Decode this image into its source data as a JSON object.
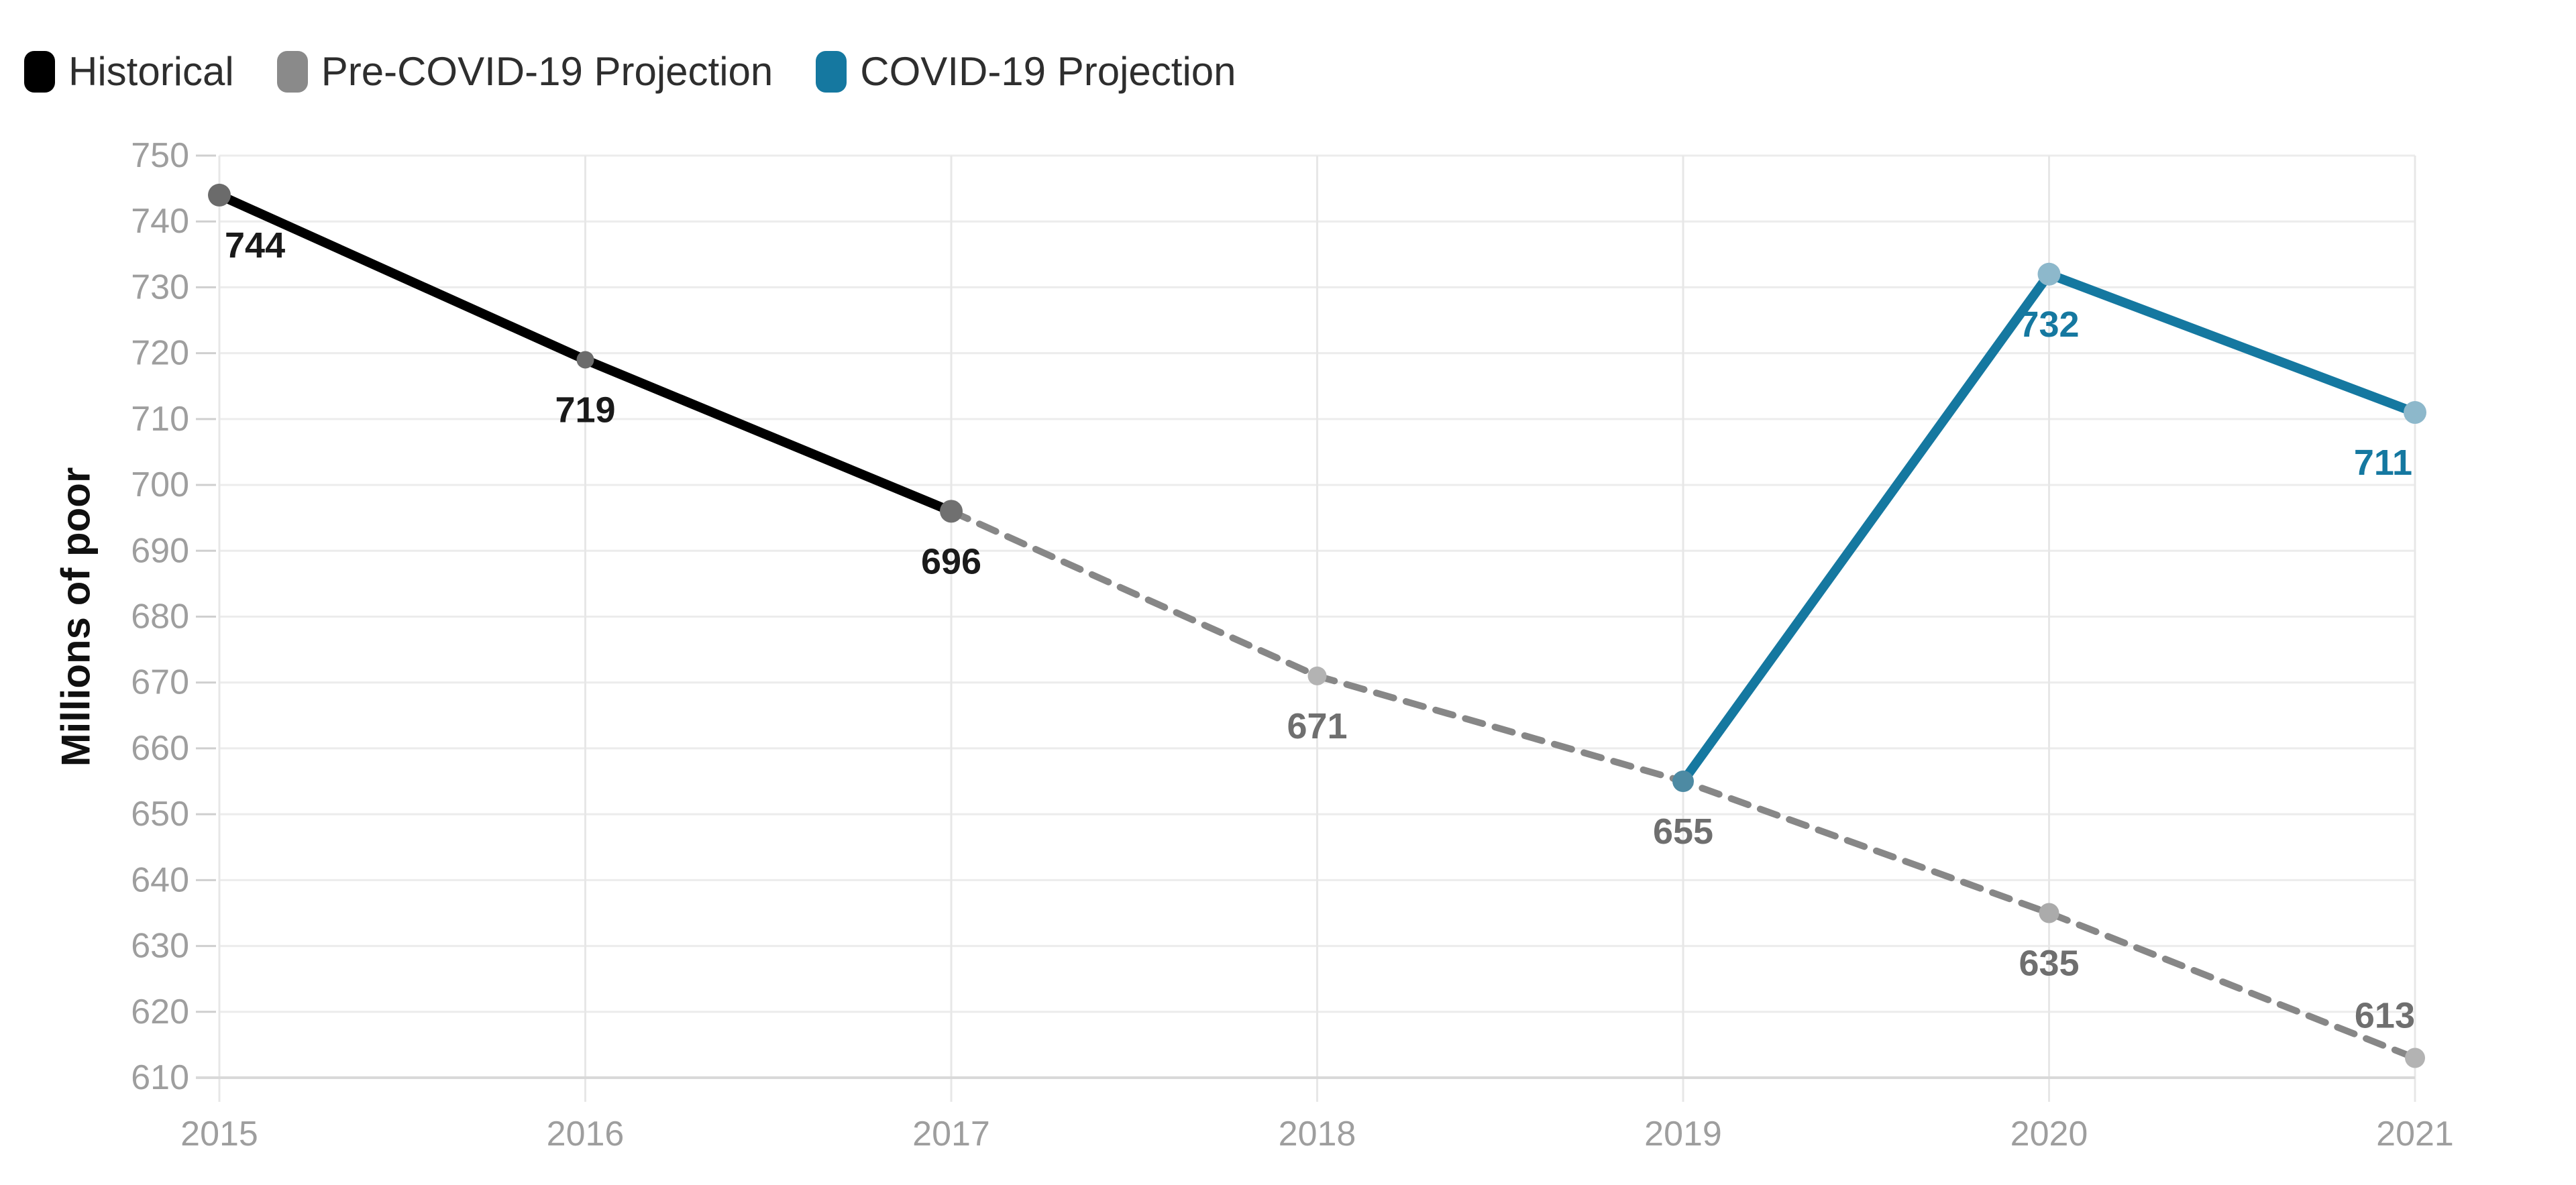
{
  "legend": {
    "items": [
      {
        "label": "Historical",
        "color": "#000000"
      },
      {
        "label": "Pre-COVID-19 Projection",
        "color": "#8a8a8a"
      },
      {
        "label": "COVID-19 Projection",
        "color": "#1578a0"
      }
    ]
  },
  "chart_data": {
    "type": "line",
    "title": "",
    "xlabel": "",
    "ylabel": "Millions of poor",
    "x_ticks": [
      2015,
      2016,
      2017,
      2018,
      2019,
      2020,
      2021
    ],
    "ylim": [
      610,
      750
    ],
    "ytick_step": 10,
    "grid": true,
    "legend_position": "top-left",
    "colors": {
      "grid_h": "#ececec",
      "grid_v": "#e7e7e7",
      "axis_line": "#d9d9d9",
      "tick_mark": "#cfcfcf",
      "tick_text": "#9e9e9e"
    },
    "series": [
      {
        "name": "Pre-COVID-19 Projection",
        "color": "#878787",
        "line_style": "dashed",
        "line_width": 10,
        "label_color": "#6f6f6f",
        "points": [
          {
            "x": 2017,
            "y": 696,
            "label": "",
            "label_pos": "none",
            "marker_color": "",
            "marker_r": 0
          },
          {
            "x": 2018,
            "y": 671,
            "label": "671",
            "label_pos": "below",
            "marker_color": "#b3b3b3",
            "marker_r": 14
          },
          {
            "x": 2019,
            "y": 655,
            "label": "655",
            "label_pos": "below",
            "marker_color": "",
            "marker_r": 0
          },
          {
            "x": 2020,
            "y": 635,
            "label": "635",
            "label_pos": "below",
            "marker_color": "#ababab",
            "marker_r": 15
          },
          {
            "x": 2021,
            "y": 613,
            "label": "613",
            "label_pos": "above-end",
            "marker_color": "#b3b3b3",
            "marker_r": 15
          }
        ]
      },
      {
        "name": "Historical",
        "color": "#000000",
        "line_style": "solid",
        "line_width": 14,
        "label_color": "#1a1a1a",
        "points": [
          {
            "x": 2015,
            "y": 744,
            "label": "744",
            "label_pos": "below-right",
            "marker_color": "#6b6b6b",
            "marker_r": 17
          },
          {
            "x": 2016,
            "y": 719,
            "label": "719",
            "label_pos": "below",
            "marker_color": "#6b6b6b",
            "marker_r": 13
          },
          {
            "x": 2017,
            "y": 696,
            "label": "696",
            "label_pos": "below",
            "marker_color": "#707070",
            "marker_r": 17
          }
        ]
      },
      {
        "name": "COVID-19 Projection",
        "color": "#1578a0",
        "line_style": "solid",
        "line_width": 14,
        "label_color": "#1578a0",
        "points": [
          {
            "x": 2019,
            "y": 655,
            "label": "",
            "label_pos": "none",
            "marker_color": "#4d8aa3",
            "marker_r": 16
          },
          {
            "x": 2020,
            "y": 732,
            "label": "732",
            "label_pos": "below",
            "marker_color": "#8db8cb",
            "marker_r": 17
          },
          {
            "x": 2021,
            "y": 711,
            "label": "711",
            "label_pos": "below-end",
            "marker_color": "#8db8cb",
            "marker_r": 17
          }
        ]
      }
    ]
  }
}
